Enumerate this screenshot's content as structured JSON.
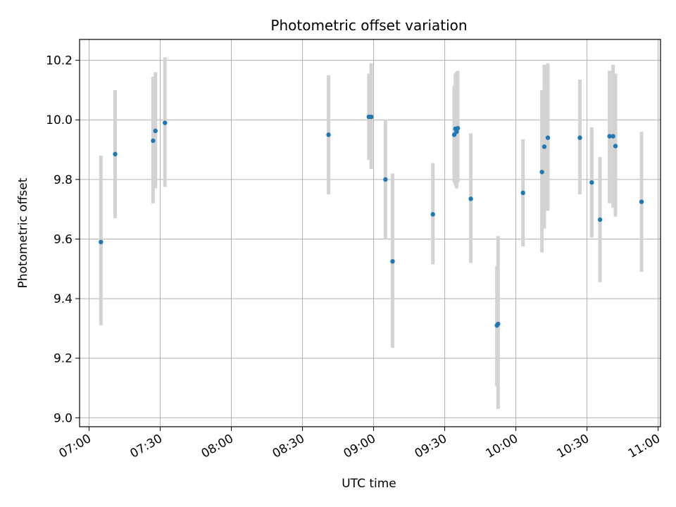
{
  "chart_data": {
    "type": "scatter",
    "title": "Photometric offset variation",
    "xlabel": "UTC time",
    "ylabel": "Photometric offset",
    "x_ticks": [
      "07:00",
      "07:30",
      "08:00",
      "08:30",
      "09:00",
      "09:30",
      "10:00",
      "10:30",
      "11:00"
    ],
    "y_ticks": [
      "9.0",
      "9.2",
      "9.4",
      "9.6",
      "9.8",
      "10.0",
      "10.2"
    ],
    "xlim": [
      "06:56",
      "11:01"
    ],
    "ylim": [
      8.97,
      10.27
    ],
    "grid": true,
    "series": [
      {
        "marker_color": "#1f77b4",
        "error_bar_color": "#d3d3d3",
        "points": [
          {
            "x": "07:05",
            "y": 9.59,
            "ylow": 9.31,
            "yhigh": 9.88
          },
          {
            "x": "07:11",
            "y": 9.885,
            "ylow": 9.67,
            "yhigh": 10.1
          },
          {
            "x": "07:27",
            "y": 9.93,
            "ylow": 9.72,
            "yhigh": 10.145
          },
          {
            "x": "07:28",
            "y": 9.963,
            "ylow": 9.77,
            "yhigh": 10.16
          },
          {
            "x": "07:32",
            "y": 9.99,
            "ylow": 9.775,
            "yhigh": 10.21
          },
          {
            "x": "08:41",
            "y": 9.95,
            "ylow": 9.75,
            "yhigh": 10.15
          },
          {
            "x": "08:58",
            "y": 10.01,
            "ylow": 9.865,
            "yhigh": 10.155
          },
          {
            "x": "08:59",
            "y": 10.01,
            "ylow": 9.835,
            "yhigh": 10.19
          },
          {
            "x": "09:05",
            "y": 9.8,
            "ylow": 9.6,
            "yhigh": 10.0
          },
          {
            "x": "09:08",
            "y": 9.525,
            "ylow": 9.235,
            "yhigh": 9.82
          },
          {
            "x": "09:25",
            "y": 9.683,
            "ylow": 9.515,
            "yhigh": 9.855
          },
          {
            "x": "09:34",
            "y": 9.95,
            "ylow": 9.79,
            "yhigh": 10.115
          },
          {
            "x": "09:34.5",
            "y": 9.97,
            "ylow": 9.78,
            "yhigh": 10.155
          },
          {
            "x": "09:35",
            "y": 9.96,
            "ylow": 9.77,
            "yhigh": 10.16
          },
          {
            "x": "09:35.5",
            "y": 9.972,
            "ylow": 9.79,
            "yhigh": 10.165
          },
          {
            "x": "09:41",
            "y": 9.735,
            "ylow": 9.52,
            "yhigh": 9.955
          },
          {
            "x": "09:52",
            "y": 9.31,
            "ylow": 9.105,
            "yhigh": 9.51
          },
          {
            "x": "09:52.5",
            "y": 9.315,
            "ylow": 9.03,
            "yhigh": 9.61
          },
          {
            "x": "10:03",
            "y": 9.755,
            "ylow": 9.575,
            "yhigh": 9.935
          },
          {
            "x": "10:11",
            "y": 9.825,
            "ylow": 9.555,
            "yhigh": 10.1
          },
          {
            "x": "10:12",
            "y": 9.91,
            "ylow": 9.635,
            "yhigh": 10.185
          },
          {
            "x": "10:13.5",
            "y": 9.94,
            "ylow": 9.695,
            "yhigh": 10.19
          },
          {
            "x": "10:27",
            "y": 9.94,
            "ylow": 9.75,
            "yhigh": 10.135
          },
          {
            "x": "10:32",
            "y": 9.79,
            "ylow": 9.605,
            "yhigh": 9.975
          },
          {
            "x": "10:35.5",
            "y": 9.665,
            "ylow": 9.455,
            "yhigh": 9.875
          },
          {
            "x": "10:39.5",
            "y": 9.945,
            "ylow": 9.72,
            "yhigh": 10.165
          },
          {
            "x": "10:41",
            "y": 9.945,
            "ylow": 9.705,
            "yhigh": 10.185
          },
          {
            "x": "10:42",
            "y": 9.912,
            "ylow": 9.675,
            "yhigh": 10.155
          },
          {
            "x": "10:53",
            "y": 9.725,
            "ylow": 9.49,
            "yhigh": 9.96
          }
        ]
      }
    ]
  }
}
